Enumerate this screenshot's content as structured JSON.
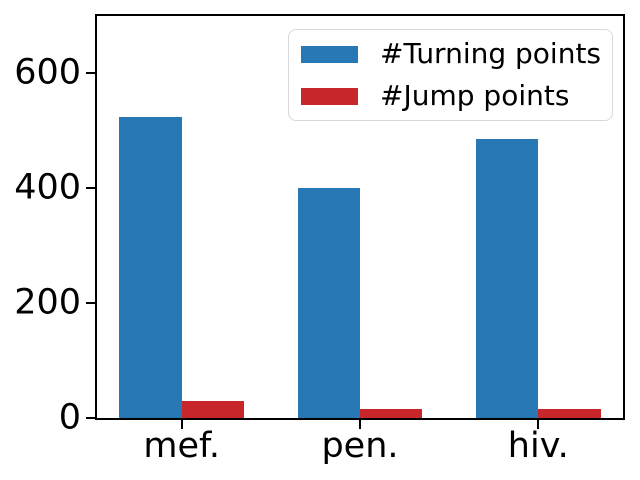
{
  "chart_data": {
    "type": "bar",
    "categories": [
      "mef.",
      "pen.",
      "hiv."
    ],
    "series": [
      {
        "name": "#Turning points",
        "color": "#2878b5",
        "values": [
          524,
          400,
          486
        ]
      },
      {
        "name": "#Jump points",
        "color": "#c7262b",
        "values": [
          30,
          16,
          15
        ]
      }
    ],
    "title": "",
    "xlabel": "",
    "ylabel": "",
    "ylim": [
      0,
      700
    ],
    "yticks": [
      0,
      200,
      400,
      600
    ],
    "bar_width": 0.35,
    "x_margin": 0.475,
    "grid": false,
    "legend_position": "upper-right",
    "axis_color": "#000000",
    "background": "#ffffff"
  }
}
